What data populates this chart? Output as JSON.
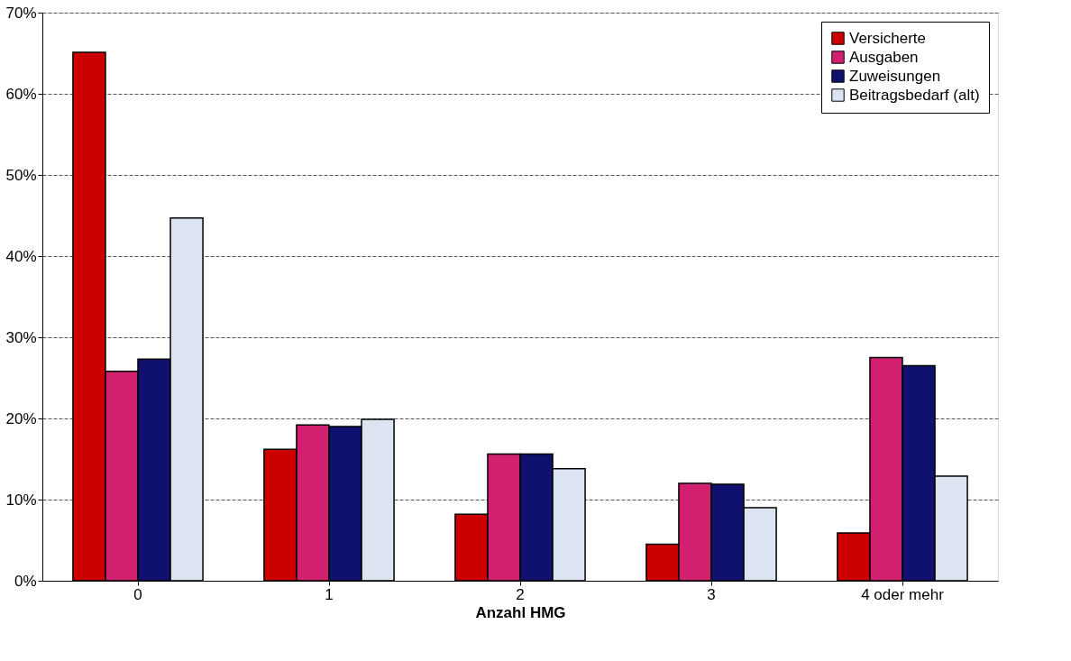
{
  "chart_data": {
    "type": "bar",
    "xlabel": "Anzahl HMG",
    "categories": [
      "0",
      "1",
      "2",
      "3",
      "4 oder mehr"
    ],
    "series": [
      {
        "name": "Versicherte",
        "color": "#cc0000",
        "values": [
          65.1,
          16.2,
          8.2,
          4.5,
          5.9
        ]
      },
      {
        "name": "Ausgaben",
        "color": "#d0206f",
        "values": [
          25.8,
          19.2,
          15.6,
          12.0,
          27.5
        ]
      },
      {
        "name": "Zuweisungen",
        "color": "#10106e",
        "values": [
          27.3,
          19.0,
          15.6,
          11.9,
          26.5
        ]
      },
      {
        "name": "Beitragsbedarf (alt)",
        "color": "#dce4f2",
        "values": [
          44.7,
          19.9,
          13.8,
          9.0,
          12.9
        ]
      }
    ],
    "ylim": [
      0,
      70
    ],
    "yticks": [
      {
        "value": 0,
        "label": "0%"
      },
      {
        "value": 10,
        "label": "10%"
      },
      {
        "value": 20,
        "label": "20%"
      },
      {
        "value": 30,
        "label": "30%"
      },
      {
        "value": 40,
        "label": "40%"
      },
      {
        "value": 50,
        "label": "50%"
      },
      {
        "value": 60,
        "label": "60%"
      },
      {
        "value": 70,
        "label": "70%"
      }
    ],
    "grid": "y",
    "legend": "top right"
  }
}
